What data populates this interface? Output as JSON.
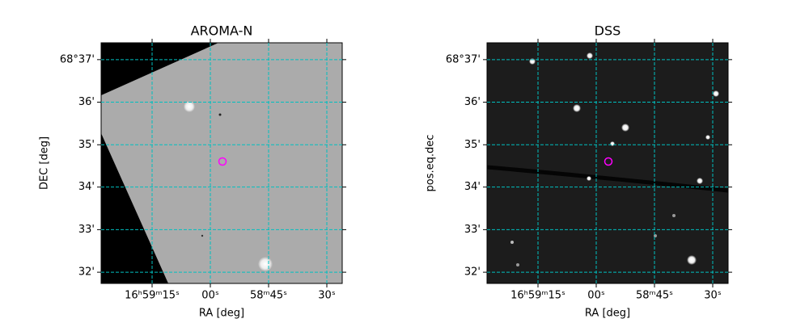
{
  "chart_data": [
    {
      "type": "image",
      "title": "AROMA-N",
      "x_label": "RA [deg]",
      "y_label": "DEC [deg]",
      "grid": true,
      "grid_color": "#00bfbf",
      "xlim": [
        254.8672,
        254.6085
      ],
      "ylim": [
        68.5289,
        68.6233
      ],
      "xticks": [
        {
          "value": 254.8125,
          "label": "16ʰ59ᵐ15ˢ"
        },
        {
          "value": 254.75,
          "label": "00ˢ"
        },
        {
          "value": 254.6875,
          "label": "58ᵐ45ˢ"
        },
        {
          "value": 254.625,
          "label": "30ˢ"
        }
      ],
      "yticks": [
        {
          "value": 68.6167,
          "label": "68°37'"
        },
        {
          "value": 68.6,
          "label": "36'"
        },
        {
          "value": 68.5833,
          "label": "35'"
        },
        {
          "value": 68.5667,
          "label": "34'"
        },
        {
          "value": 68.55,
          "label": "33'"
        },
        {
          "value": 68.5333,
          "label": "32'"
        }
      ]
    },
    {
      "type": "image",
      "title": "DSS",
      "x_label": "RA [deg]",
      "y_label": "pos.eq.dec",
      "grid": true,
      "grid_color": "#00bfbf",
      "xlim": [
        254.8672,
        254.6085
      ],
      "ylim": [
        68.5289,
        68.6233
      ],
      "xticks": [
        {
          "value": 254.8125,
          "label": "16ʰ59ᵐ15ˢ"
        },
        {
          "value": 254.75,
          "label": "00ˢ"
        },
        {
          "value": 254.6875,
          "label": "58ᵐ45ˢ"
        },
        {
          "value": 254.625,
          "label": "30ˢ"
        }
      ],
      "yticks": [
        {
          "value": 68.6167,
          "label": "68°37'"
        },
        {
          "value": 68.6,
          "label": "36'"
        },
        {
          "value": 68.5833,
          "label": "35'"
        },
        {
          "value": 68.5667,
          "label": "34'"
        },
        {
          "value": 68.55,
          "label": "33'"
        },
        {
          "value": 68.5333,
          "label": "32'"
        }
      ]
    }
  ]
}
